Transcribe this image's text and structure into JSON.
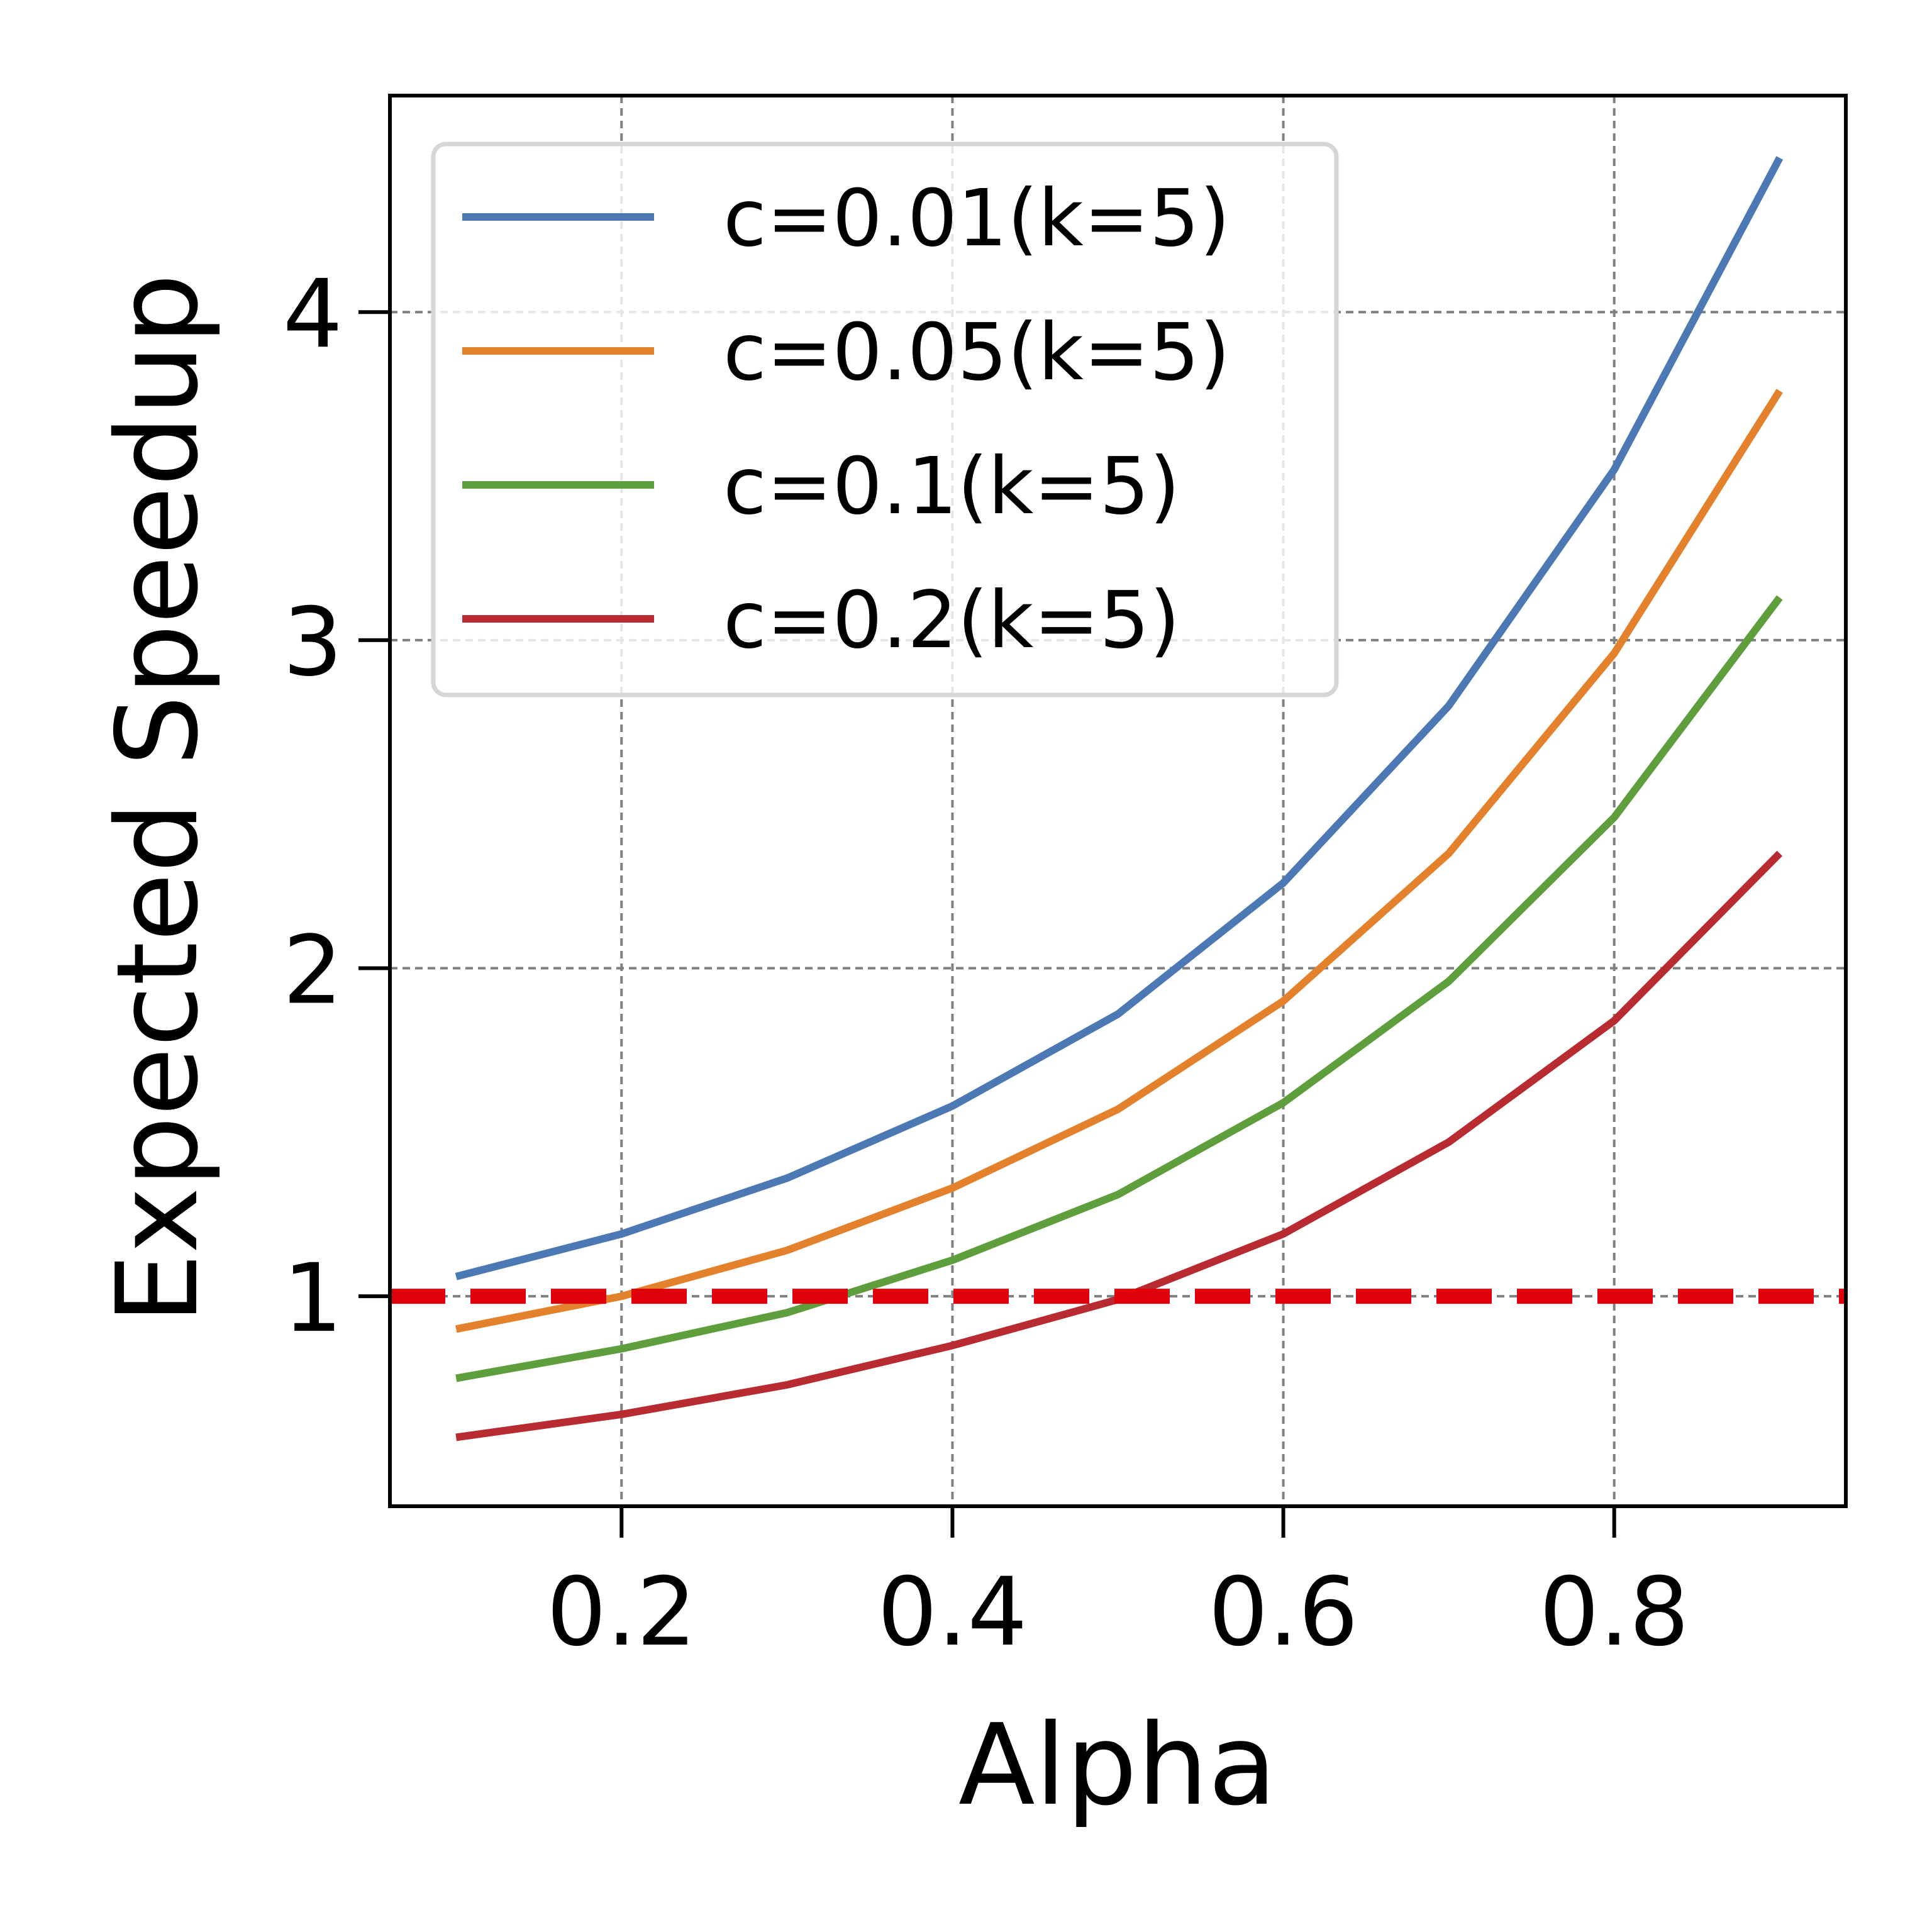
{
  "chart_data": {
    "type": "line",
    "title": "",
    "xlabel": "Alpha",
    "ylabel": "Expected Speedup",
    "x": [
      0.1,
      0.2,
      0.3,
      0.4,
      0.5,
      0.6,
      0.7,
      0.8,
      0.9
    ],
    "xlim": [
      0.06,
      0.94
    ],
    "ylim": [
      0.36,
      4.66
    ],
    "xticks": [
      0.2,
      0.4,
      0.6,
      0.8
    ],
    "xtick_labels": [
      "0.2",
      "0.4",
      "0.6",
      "0.8"
    ],
    "yticks": [
      1,
      2,
      3,
      4
    ],
    "ytick_labels": [
      "1",
      "2",
      "3",
      "4"
    ],
    "grid": true,
    "legend_position": "top-left",
    "series": [
      {
        "name": "c=0.01(k=5)",
        "color": "#4c78b4",
        "values": [
          1.06,
          1.19,
          1.36,
          1.58,
          1.86,
          2.26,
          2.8,
          3.52,
          4.47
        ]
      },
      {
        "name": "c=0.05(k=5)",
        "color": "#e3812c",
        "values": [
          0.9,
          1.0,
          1.14,
          1.33,
          1.57,
          1.9,
          2.35,
          2.96,
          3.76
        ]
      },
      {
        "name": "c=0.1(k=5)",
        "color": "#5e9e3c",
        "values": [
          0.75,
          0.84,
          0.95,
          1.11,
          1.31,
          1.59,
          1.96,
          2.46,
          3.13
        ]
      },
      {
        "name": "c=0.2(k=5)",
        "color": "#b82b31",
        "values": [
          0.57,
          0.64,
          0.73,
          0.85,
          0.99,
          1.19,
          1.47,
          1.84,
          2.35
        ]
      }
    ],
    "reference_line": {
      "y": 1.0,
      "color": "#e0000a",
      "style": "dashed"
    }
  }
}
